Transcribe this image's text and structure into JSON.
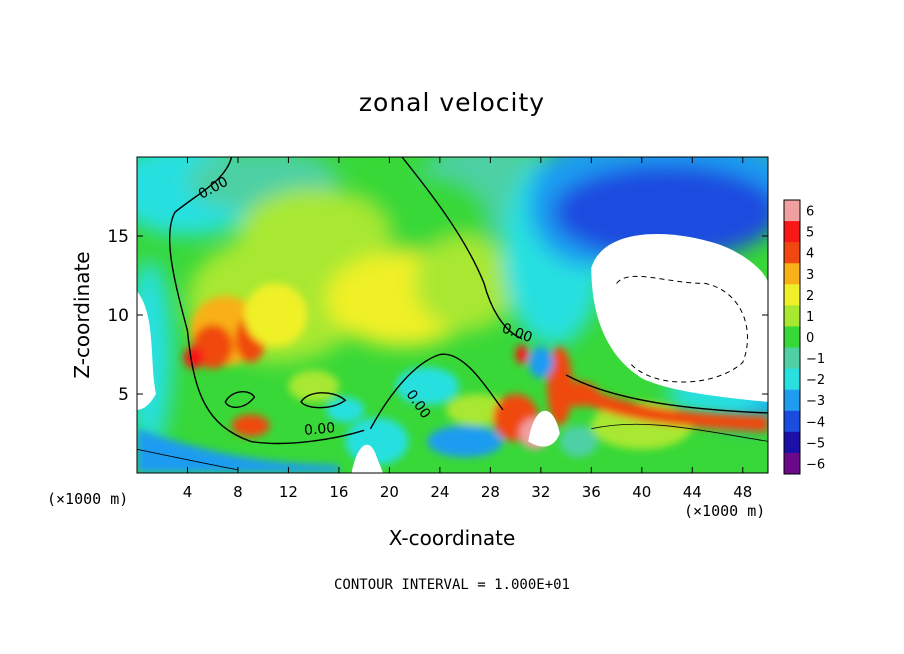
{
  "colors": {
    "scale": [
      "#6a0a8a",
      "#1a10a8",
      "#1a4ce0",
      "#1f9cf0",
      "#28e0e0",
      "#4ed0a4",
      "#38d838",
      "#a8e830",
      "#f0f028",
      "#f8b018",
      "#f04810",
      "#f81818",
      "#f0a0a0"
    ],
    "contour_line": "#000000",
    "undefined_region": "#ffffff"
  },
  "chart_data": {
    "type": "heatmap",
    "title": "zonal velocity",
    "xlabel": "X-coordinate",
    "ylabel": "Z-coordinate",
    "x_unit_label": "(×1000 m)",
    "x_range": [
      0,
      50
    ],
    "y_range": [
      0,
      20
    ],
    "x_ticks": [
      4,
      8,
      12,
      16,
      20,
      24,
      28,
      32,
      36,
      40,
      44,
      48
    ],
    "y_ticks": [
      5,
      10,
      15
    ],
    "colorbar": {
      "ticks": [
        6,
        5,
        4,
        3,
        2,
        1,
        0,
        -1,
        -2,
        -3,
        -4,
        -5,
        -6
      ],
      "range": [
        -6,
        6
      ]
    },
    "contour_labels": [
      "0.00",
      "0.00",
      "0.00",
      "0.00"
    ],
    "contour_interval_text": "CONTOUR INTERVAL = 1.000E+01",
    "field_description": "approximate zonal velocity field: positive (red/orange) core near x=4-10, z=6-10; negative (blue) region above 30-50 km; white masked region x=36-50, z=6-15"
  }
}
